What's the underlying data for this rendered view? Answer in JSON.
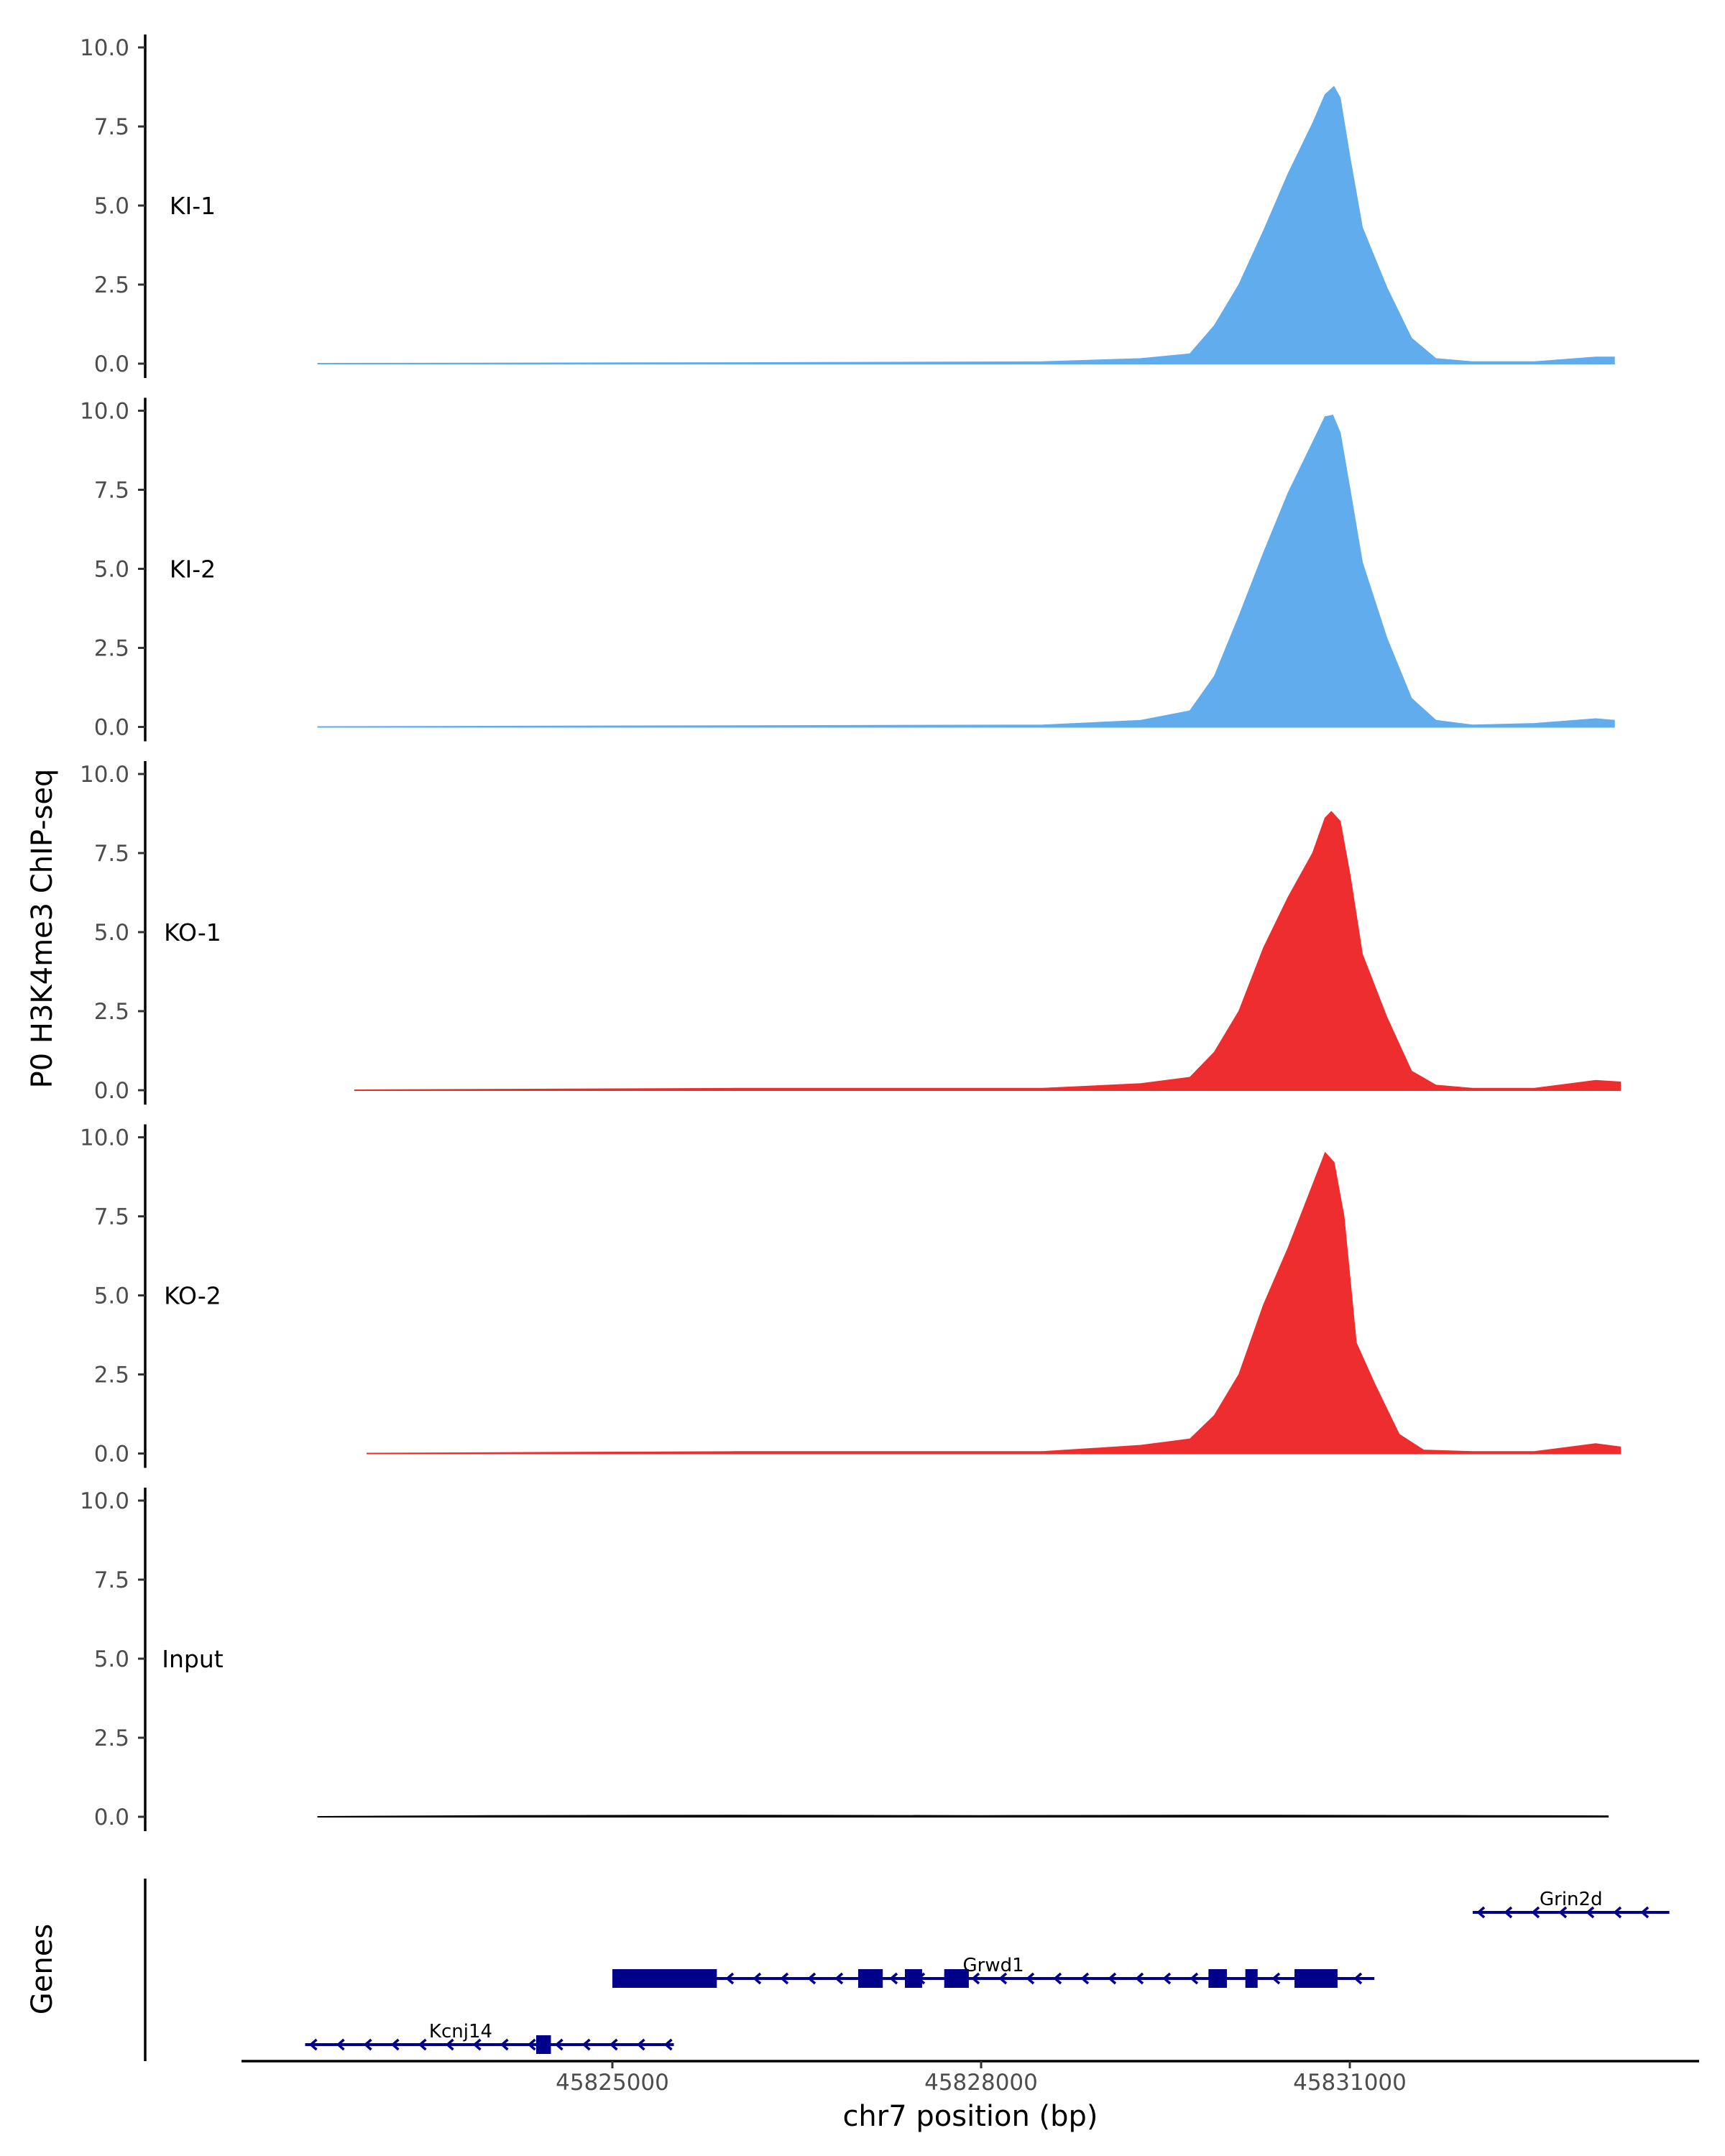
{
  "chart_data": {
    "type": "area",
    "ylabel": "P0 H3K4me3 ChIP-seq",
    "xlabel": "chr7 position (bp)",
    "genes_label": "Genes",
    "x_ticks": [
      45825000,
      45828000,
      45831000
    ],
    "x_tick_labels": [
      "45825000",
      "45828000",
      "45831000"
    ],
    "x_range": [
      45822000,
      45833500
    ],
    "ylim": [
      0,
      10
    ],
    "y_ticks": [
      0.0,
      2.5,
      5.0,
      7.5,
      10.0
    ],
    "y_tick_labels": [
      "0.0",
      "2.5",
      "5.0",
      "7.5",
      "10.0"
    ],
    "colors": {
      "KI": "#61acec",
      "KO": "#ee2d2f",
      "Input": "#000000",
      "gene": "#00008b"
    },
    "tracks": [
      {
        "name": "KI-1",
        "color": "#61acec",
        "x": [
          45822600,
          45826000,
          45828500,
          45829300,
          45829700,
          45829900,
          45830100,
          45830300,
          45830500,
          45830700,
          45830800,
          45830870,
          45830920,
          45831000,
          45831100,
          45831300,
          45831500,
          45831700,
          45832000,
          45832500,
          45833000,
          45833150
        ],
        "y": [
          0,
          0.02,
          0.05,
          0.15,
          0.3,
          1.2,
          2.5,
          4.2,
          6.0,
          7.6,
          8.5,
          8.75,
          8.4,
          6.5,
          4.3,
          2.4,
          0.8,
          0.15,
          0.05,
          0.05,
          0.2,
          0.2
        ]
      },
      {
        "name": "KI-2",
        "color": "#61acec",
        "x": [
          45822600,
          45826000,
          45828500,
          45829300,
          45829700,
          45829900,
          45830100,
          45830300,
          45830500,
          45830700,
          45830800,
          45830860,
          45830920,
          45831000,
          45831100,
          45831300,
          45831500,
          45831700,
          45832000,
          45832500,
          45833000,
          45833150
        ],
        "y": [
          0,
          0.03,
          0.05,
          0.2,
          0.5,
          1.6,
          3.5,
          5.5,
          7.4,
          9.0,
          9.8,
          9.85,
          9.3,
          7.5,
          5.2,
          2.8,
          0.9,
          0.2,
          0.05,
          0.1,
          0.25,
          0.2
        ]
      },
      {
        "name": "KO-1",
        "color": "#ee2d2f",
        "x": [
          45822900,
          45826000,
          45828500,
          45829300,
          45829700,
          45829900,
          45830100,
          45830300,
          45830500,
          45830700,
          45830800,
          45830850,
          45830920,
          45831000,
          45831100,
          45831300,
          45831500,
          45831700,
          45832000,
          45832500,
          45833000,
          45833200
        ],
        "y": [
          0,
          0.05,
          0.05,
          0.2,
          0.4,
          1.2,
          2.5,
          4.5,
          6.1,
          7.5,
          8.6,
          8.8,
          8.5,
          6.8,
          4.3,
          2.3,
          0.6,
          0.15,
          0.05,
          0.05,
          0.3,
          0.25
        ]
      },
      {
        "name": "KO-2",
        "color": "#ee2d2f",
        "x": [
          45823000,
          45826000,
          45828500,
          45829300,
          45829700,
          45829900,
          45830100,
          45830300,
          45830500,
          45830650,
          45830750,
          45830800,
          45830870,
          45830950,
          45831050,
          45831200,
          45831400,
          45831600,
          45832000,
          45832500,
          45833000,
          45833200
        ],
        "y": [
          0,
          0.05,
          0.05,
          0.25,
          0.45,
          1.2,
          2.5,
          4.7,
          6.5,
          8.0,
          9.0,
          9.5,
          9.2,
          7.5,
          3.5,
          2.2,
          0.6,
          0.1,
          0.05,
          0.05,
          0.3,
          0.2
        ]
      },
      {
        "name": "Input",
        "color": "#000000",
        "x": [
          45822600,
          45824000,
          45826000,
          45828000,
          45830000,
          45832000,
          45833100
        ],
        "y": [
          0,
          0.03,
          0.04,
          0.03,
          0.04,
          0.03,
          0.02
        ]
      }
    ],
    "genes": [
      {
        "name": "Kcnj14",
        "start": 45822500,
        "end": 45825500,
        "strand": "-",
        "row": 0,
        "exons": [
          [
            45824380,
            45824500
          ]
        ]
      },
      {
        "name": "Grwd1",
        "start": 45825000,
        "end": 45831200,
        "strand": "-",
        "row": 1,
        "exons": [
          [
            45825000,
            45825850
          ],
          [
            45827000,
            45827200
          ],
          [
            45827380,
            45827520
          ],
          [
            45827700,
            45827900
          ],
          [
            45829850,
            45830000
          ],
          [
            45830150,
            45830250
          ],
          [
            45830550,
            45830900
          ]
        ]
      },
      {
        "name": "Grin2d",
        "start": 45832000,
        "end": 45833600,
        "strand": "-",
        "row": 2,
        "exons": []
      }
    ]
  }
}
